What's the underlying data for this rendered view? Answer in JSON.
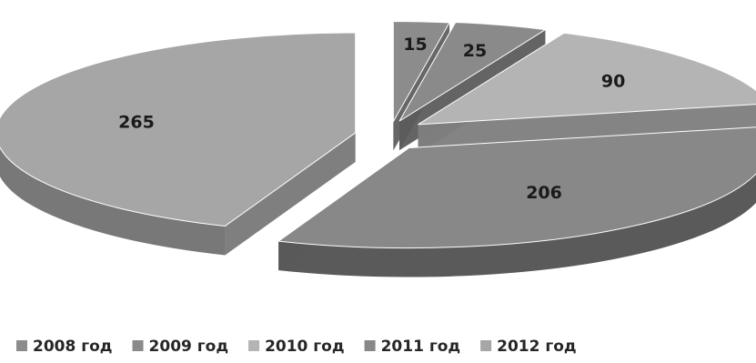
{
  "chart_data": {
    "type": "pie",
    "style": "3d-exploded",
    "legend_position": "bottom",
    "title": "",
    "categories": [
      "2008 год",
      "2009 год",
      "2010 год",
      "2011 год",
      "2012 год"
    ],
    "values": [
      15,
      25,
      90,
      206,
      265
    ],
    "colors": {
      "top": [
        "#8c8c8c",
        "#8a8a8a",
        "#b4b4b4",
        "#888888",
        "#a6a6a6"
      ],
      "side": [
        "#5f5f5f",
        "#5c5c5c",
        "#7d7d7d",
        "#5a5a5a",
        "#787878"
      ],
      "legend": [
        "#8c8c8c",
        "#8a8a8a",
        "#b4b4b4",
        "#888888",
        "#a6a6a6"
      ]
    }
  }
}
